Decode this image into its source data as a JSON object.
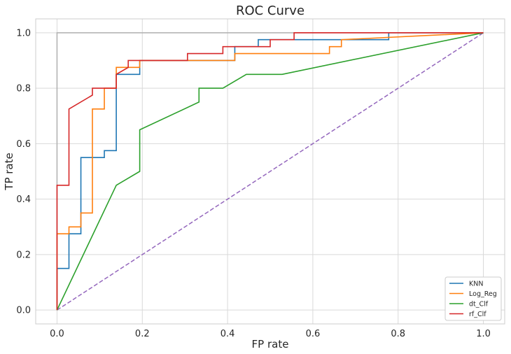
{
  "chart_data": {
    "type": "line",
    "title": "ROC Curve",
    "xlabel": "FP rate",
    "ylabel": "TP rate",
    "xlim": [
      -0.05,
      1.05
    ],
    "ylim": [
      -0.05,
      1.05
    ],
    "xticks": [
      0.0,
      0.2,
      0.4,
      0.6,
      0.8,
      1.0
    ],
    "yticks": [
      0.0,
      0.2,
      0.4,
      0.6,
      0.8,
      1.0
    ],
    "xtick_labels": [
      "0.0",
      "0.2",
      "0.4",
      "0.6",
      "0.8",
      "1.0"
    ],
    "ytick_labels": [
      "0.0",
      "0.2",
      "0.4",
      "0.6",
      "0.8",
      "1.0"
    ],
    "grid": true,
    "legend_position": "bottom-right",
    "reference_lines": [
      {
        "name": "perfect",
        "color": "#b0b0b0",
        "dash": false,
        "x": [
          0.0,
          0.0,
          1.0
        ],
        "y": [
          0.0,
          1.0,
          1.0
        ]
      },
      {
        "name": "random",
        "color": "#9467bd",
        "dash": true,
        "x": [
          0.0,
          1.0
        ],
        "y": [
          0.0,
          1.0
        ]
      }
    ],
    "series": [
      {
        "name": "KNN",
        "color": "#1f77b4",
        "x": [
          0.0,
          0.0,
          0.0,
          0.028,
          0.028,
          0.056,
          0.056,
          0.111,
          0.111,
          0.139,
          0.139,
          0.194,
          0.194,
          0.417,
          0.417,
          0.472,
          0.472,
          0.778,
          0.778,
          1.0
        ],
        "y": [
          0.0,
          0.075,
          0.15,
          0.15,
          0.275,
          0.275,
          0.55,
          0.55,
          0.575,
          0.575,
          0.85,
          0.85,
          0.9,
          0.9,
          0.95,
          0.95,
          0.975,
          0.975,
          1.0,
          1.0
        ]
      },
      {
        "name": "Log_Reg",
        "color": "#ff7f0e",
        "x": [
          0.0,
          0.0,
          0.028,
          0.028,
          0.056,
          0.056,
          0.083,
          0.083,
          0.111,
          0.111,
          0.139,
          0.139,
          0.194,
          0.194,
          0.417,
          0.417,
          0.639,
          0.639,
          0.667,
          0.667,
          1.0
        ],
        "y": [
          0.0,
          0.275,
          0.275,
          0.3,
          0.3,
          0.35,
          0.35,
          0.725,
          0.725,
          0.8,
          0.8,
          0.875,
          0.875,
          0.9,
          0.9,
          0.925,
          0.925,
          0.95,
          0.95,
          0.975,
          1.0
        ]
      },
      {
        "name": "dt_Clf",
        "color": "#2ca02c",
        "x": [
          0.0,
          0.139,
          0.194,
          0.194,
          0.333,
          0.333,
          0.389,
          0.444,
          0.528,
          1.0
        ],
        "y": [
          0.0,
          0.45,
          0.5,
          0.65,
          0.75,
          0.8,
          0.8,
          0.85,
          0.85,
          1.0
        ]
      },
      {
        "name": "rf_Clf",
        "color": "#d62728",
        "x": [
          0.0,
          0.0,
          0.028,
          0.028,
          0.083,
          0.083,
          0.139,
          0.139,
          0.167,
          0.167,
          0.306,
          0.306,
          0.389,
          0.389,
          0.417,
          0.417,
          0.5,
          0.5,
          0.556,
          0.556,
          1.0
        ],
        "y": [
          0.0,
          0.45,
          0.45,
          0.725,
          0.775,
          0.8,
          0.8,
          0.85,
          0.875,
          0.9,
          0.9,
          0.925,
          0.925,
          0.95,
          0.95,
          0.95,
          0.95,
          0.975,
          0.975,
          1.0,
          1.0
        ]
      }
    ]
  }
}
